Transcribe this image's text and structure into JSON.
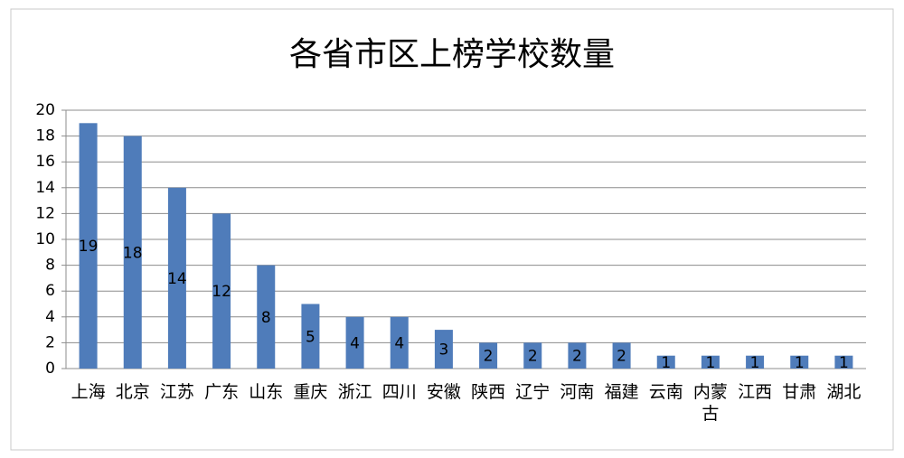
{
  "chart_data": {
    "type": "bar",
    "title": "各省市区上榜学校数量",
    "categories": [
      "上海",
      "北京",
      "江苏",
      "广东",
      "山东",
      "重庆",
      "浙江",
      "四川",
      "安徽",
      "陕西",
      "辽宁",
      "河南",
      "福建",
      "云南",
      "内蒙古",
      "江西",
      "甘肃",
      "湖北"
    ],
    "values": [
      19,
      18,
      14,
      12,
      8,
      5,
      4,
      4,
      3,
      2,
      2,
      2,
      2,
      1,
      1,
      1,
      1,
      1
    ],
    "color": "#4f7cba",
    "ylim": [
      0,
      20
    ],
    "yticks": [
      0,
      2,
      4,
      6,
      8,
      10,
      12,
      14,
      16,
      18,
      20
    ],
    "grid": true
  }
}
